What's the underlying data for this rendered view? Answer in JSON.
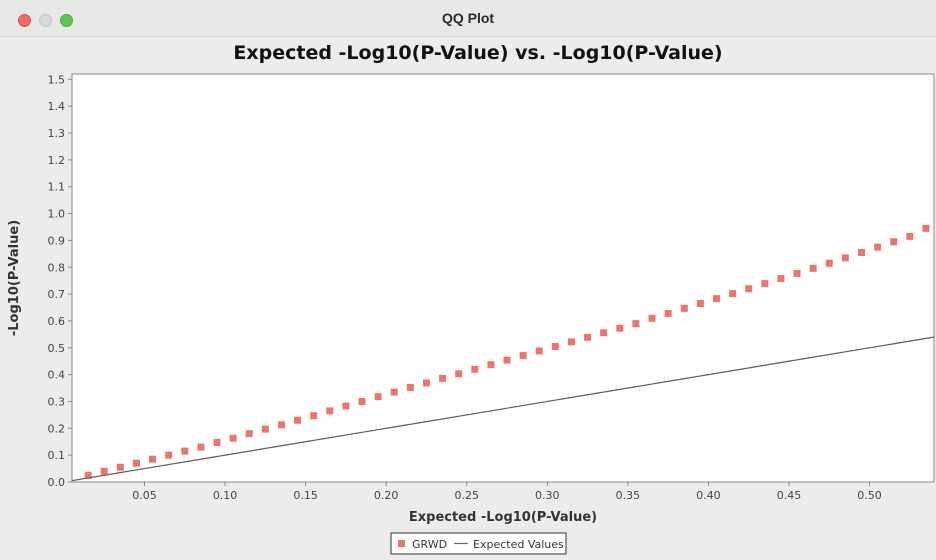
{
  "window": {
    "title": "QQ Plot"
  },
  "colors": {
    "series": "#e8766c",
    "expected_line": "#666666",
    "plot_bg": "#ffffff",
    "frame": "#888888"
  },
  "chart_data": {
    "type": "scatter",
    "title": "Expected -Log10(P-Value) vs. -Log10(P-Value)",
    "xlabel": "Expected -Log10(P-Value)",
    "ylabel": "-Log10(P-Value)",
    "xlim": [
      0.005,
      0.54
    ],
    "ylim": [
      0.0,
      1.52
    ],
    "grid": false,
    "legend_position": "bottom-center",
    "x_ticks": [
      "0.05",
      "0.10",
      "0.15",
      "0.20",
      "0.25",
      "0.30",
      "0.35",
      "0.40",
      "0.45",
      "0.50"
    ],
    "y_ticks": [
      "0.0",
      "0.1",
      "0.2",
      "0.3",
      "0.4",
      "0.5",
      "0.6",
      "0.7",
      "0.8",
      "0.9",
      "1.0",
      "1.1",
      "1.2",
      "1.3",
      "1.4",
      "1.5"
    ],
    "legend": [
      "GRWD",
      "Expected Values"
    ],
    "series": [
      {
        "name": "GRWD",
        "kind": "points",
        "x": [
          0.015,
          0.025,
          0.035,
          0.045,
          0.055,
          0.065,
          0.075,
          0.085,
          0.095,
          0.105,
          0.115,
          0.125,
          0.135,
          0.145,
          0.155,
          0.165,
          0.175,
          0.185,
          0.195,
          0.205,
          0.215,
          0.225,
          0.235,
          0.245,
          0.255,
          0.265,
          0.275,
          0.285,
          0.295,
          0.305,
          0.315,
          0.325,
          0.335,
          0.345,
          0.355,
          0.365,
          0.375,
          0.385,
          0.395,
          0.405,
          0.415,
          0.425,
          0.435,
          0.445,
          0.455,
          0.465,
          0.475,
          0.485,
          0.495,
          0.505,
          0.515,
          0.525,
          0.535
        ],
        "y": [
          0.025,
          0.04,
          0.055,
          0.07,
          0.085,
          0.1,
          0.115,
          0.13,
          0.147,
          0.163,
          0.18,
          0.197,
          0.213,
          0.23,
          0.247,
          0.265,
          0.283,
          0.3,
          0.318,
          0.335,
          0.352,
          0.369,
          0.386,
          0.403,
          0.42,
          0.437,
          0.454,
          0.471,
          0.488,
          0.505,
          0.522,
          0.539,
          0.556,
          0.573,
          0.59,
          0.61,
          0.628,
          0.647,
          0.665,
          0.683,
          0.702,
          0.72,
          0.739,
          0.758,
          0.777,
          0.796,
          0.815,
          0.835,
          0.855,
          0.875,
          0.895,
          0.915,
          0.945
        ]
      },
      {
        "name": "Expected Values",
        "kind": "line",
        "x": [
          0.005,
          0.54
        ],
        "y": [
          0.005,
          0.54
        ]
      }
    ]
  }
}
